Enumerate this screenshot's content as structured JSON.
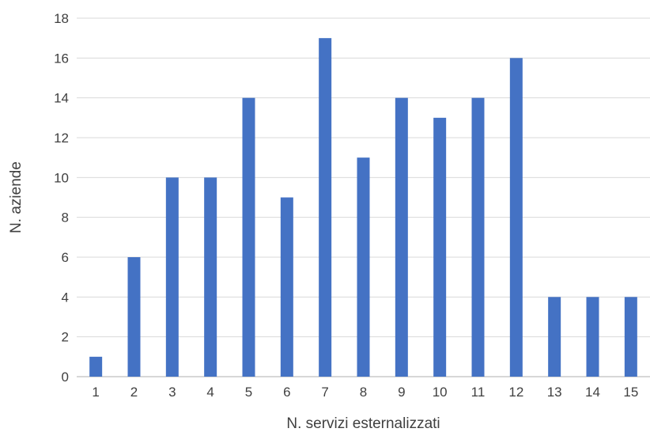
{
  "chart_data": {
    "type": "bar",
    "title": "",
    "xlabel": "N. servizi esternalizzati",
    "ylabel": "N. aziende",
    "categories": [
      "1",
      "2",
      "3",
      "4",
      "5",
      "6",
      "7",
      "8",
      "9",
      "10",
      "11",
      "12",
      "13",
      "14",
      "15"
    ],
    "values": [
      1,
      6,
      10,
      10,
      14,
      9,
      17,
      11,
      14,
      13,
      14,
      16,
      4,
      4,
      4
    ],
    "ylim": [
      0,
      18
    ],
    "yticks": [
      0,
      2,
      4,
      6,
      8,
      10,
      12,
      14,
      16,
      18
    ],
    "grid": true,
    "legend": "none",
    "bar_color": "#4472c4",
    "grid_color": "#d9d9d9",
    "text_color": "#404040"
  }
}
